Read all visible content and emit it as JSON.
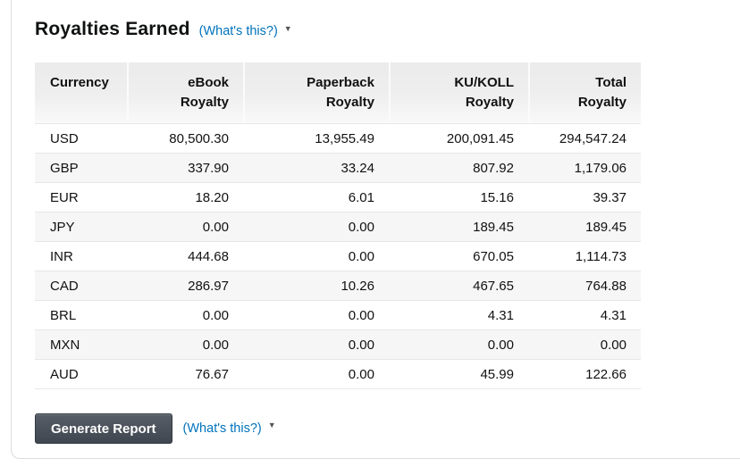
{
  "header": {
    "title": "Royalties Earned",
    "whats_this_label": "(What's this?)"
  },
  "icons": {
    "caret_down": "▼"
  },
  "table": {
    "columns": [
      {
        "label": "Currency"
      },
      {
        "label": "eBook\nRoyalty"
      },
      {
        "label": "Paperback\nRoyalty"
      },
      {
        "label": "KU/KOLL\nRoyalty"
      },
      {
        "label": "Total\nRoyalty"
      }
    ],
    "rows": [
      {
        "currency": "USD",
        "ebook": "80,500.30",
        "paperback": "13,955.49",
        "ku_koll": "200,091.45",
        "total": "294,547.24"
      },
      {
        "currency": "GBP",
        "ebook": "337.90",
        "paperback": "33.24",
        "ku_koll": "807.92",
        "total": "1,179.06"
      },
      {
        "currency": "EUR",
        "ebook": "18.20",
        "paperback": "6.01",
        "ku_koll": "15.16",
        "total": "39.37"
      },
      {
        "currency": "JPY",
        "ebook": "0.00",
        "paperback": "0.00",
        "ku_koll": "189.45",
        "total": "189.45"
      },
      {
        "currency": "INR",
        "ebook": "444.68",
        "paperback": "0.00",
        "ku_koll": "670.05",
        "total": "1,114.73"
      },
      {
        "currency": "CAD",
        "ebook": "286.97",
        "paperback": "10.26",
        "ku_koll": "467.65",
        "total": "764.88"
      },
      {
        "currency": "BRL",
        "ebook": "0.00",
        "paperback": "0.00",
        "ku_koll": "4.31",
        "total": "4.31"
      },
      {
        "currency": "MXN",
        "ebook": "0.00",
        "paperback": "0.00",
        "ku_koll": "0.00",
        "total": "0.00"
      },
      {
        "currency": "AUD",
        "ebook": "76.67",
        "paperback": "0.00",
        "ku_koll": "45.99",
        "total": "122.66"
      }
    ]
  },
  "footer": {
    "generate_report_label": "Generate Report",
    "whats_this_label": "(What's this?)"
  },
  "colors": {
    "link_blue": "#0073bb",
    "button_dark_top": "#575e68",
    "button_dark_bottom": "#40464f",
    "header_gray": "#ebebeb",
    "row_alt_gray": "#f6f6f6",
    "row_border": "#e7e7e7",
    "card_border": "#dcdcdc",
    "text": "#111111"
  }
}
